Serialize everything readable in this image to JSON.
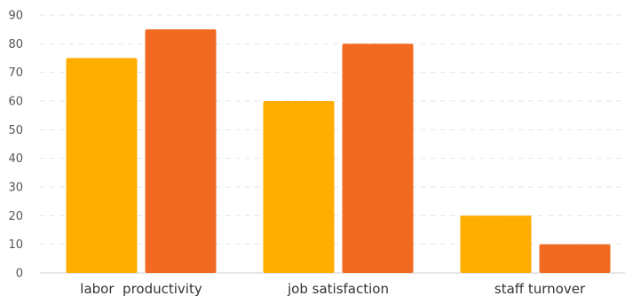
{
  "chart_data": {
    "type": "bar",
    "categories": [
      "labor  productivity",
      "job satisfaction",
      "staff turnover"
    ],
    "series": [
      {
        "values": [
          75,
          60,
          20
        ],
        "color": "#FFAE00"
      },
      {
        "values": [
          85,
          80,
          10
        ],
        "color": "#F26A22"
      }
    ],
    "yticks": [
      0,
      10,
      20,
      30,
      40,
      50,
      60,
      70,
      80,
      90
    ],
    "ylim": [
      0,
      90
    ],
    "grid": true,
    "legend": "none"
  }
}
